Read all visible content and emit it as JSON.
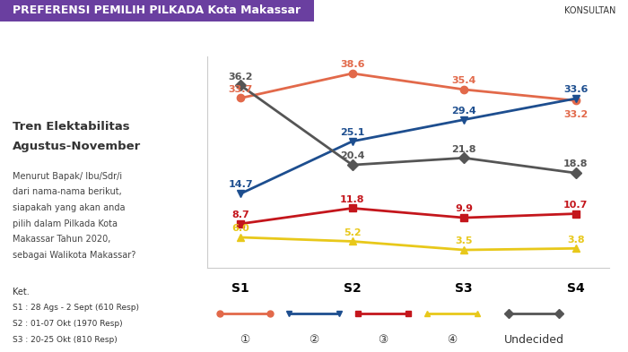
{
  "header": {
    "title": "PREFERENSI PEMILIH PILKADA Kota Makassar",
    "logo_text": "KONSULTAN"
  },
  "side_panel": {
    "title_lines": [
      "Tren Elektabilitas",
      "Agustus-November"
    ],
    "question_lines": [
      "Menurut Bapak/ Ibu/Sdr/i",
      "dari nama-nama berikut,",
      "siapakah yang akan anda",
      "pilih dalam Pilkada Kota",
      "Makassar Tahun 2020,",
      "sebagai Walikota Makassar?"
    ],
    "notes_title": "Ket.",
    "notes": [
      "S1 : 28 Ags - 2 Sept (610 Resp)",
      "S2 : 01-07 Okt (1970 Resp)",
      "S3 : 20-25 Okt (810 Resp)"
    ]
  },
  "chart_data": {
    "type": "line",
    "categories": [
      "S1",
      "S2",
      "S3",
      "S4"
    ],
    "ylim": [
      0,
      42
    ],
    "tick_labels": "x",
    "data_labels": true,
    "grid": false,
    "series": [
      {
        "name": "①",
        "color": "#e2694a",
        "marker": "o",
        "values": [
          33.7,
          38.6,
          35.4,
          33.2
        ]
      },
      {
        "name": "②",
        "color": "#1d4e8f",
        "marker": "v",
        "values": [
          14.7,
          25.1,
          29.4,
          33.6
        ]
      },
      {
        "name": "③",
        "color": "#c4161c",
        "marker": "s",
        "values": [
          8.7,
          11.8,
          9.9,
          10.7
        ]
      },
      {
        "name": "④",
        "color": "#e8c81a",
        "marker": "^",
        "values": [
          6.0,
          5.2,
          3.5,
          3.8
        ]
      },
      {
        "name": "Undecided",
        "color": "#555555",
        "marker": "D",
        "values": [
          36.2,
          20.4,
          21.8,
          18.8
        ]
      }
    ]
  }
}
